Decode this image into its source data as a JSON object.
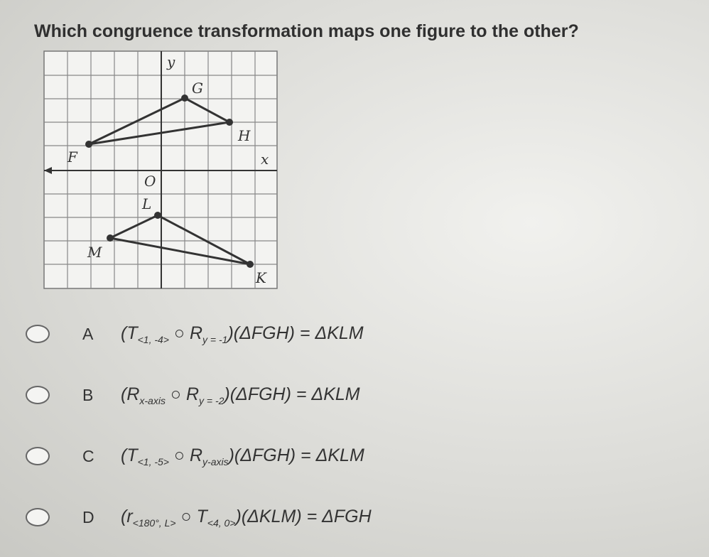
{
  "question": "Which congruence transformation maps one figure to the other?",
  "graph": {
    "axis_labels": {
      "x": "x",
      "y": "y",
      "origin": "O"
    },
    "points": {
      "F": "F",
      "G": "G",
      "H": "H",
      "K": "K",
      "L": "L",
      "M": "M"
    }
  },
  "options": [
    {
      "letter": "A",
      "parts": [
        {
          "text": "(T"
        },
        {
          "sub": "<1, -4>"
        },
        {
          "text": " ○ R"
        },
        {
          "sub": "y = -1"
        },
        {
          "text": ")(ΔFGH) = ΔKLM"
        }
      ]
    },
    {
      "letter": "B",
      "parts": [
        {
          "text": "(R"
        },
        {
          "sub": "x-axis"
        },
        {
          "text": " ○ R"
        },
        {
          "sub": "y = -2"
        },
        {
          "text": ")(ΔFGH) = ΔKLM"
        }
      ]
    },
    {
      "letter": "C",
      "parts": [
        {
          "text": "(T"
        },
        {
          "sub": "<1, -5>"
        },
        {
          "text": " ○ R"
        },
        {
          "sub": "y-axis"
        },
        {
          "text": ")(ΔFGH) = ΔKLM"
        }
      ]
    },
    {
      "letter": "D",
      "parts": [
        {
          "text": "(r"
        },
        {
          "sub": "<180°, L>"
        },
        {
          "text": " ○ T"
        },
        {
          "sub": "<4, 0>"
        },
        {
          "text": ")(ΔKLM) = ΔFGH"
        }
      ]
    }
  ]
}
